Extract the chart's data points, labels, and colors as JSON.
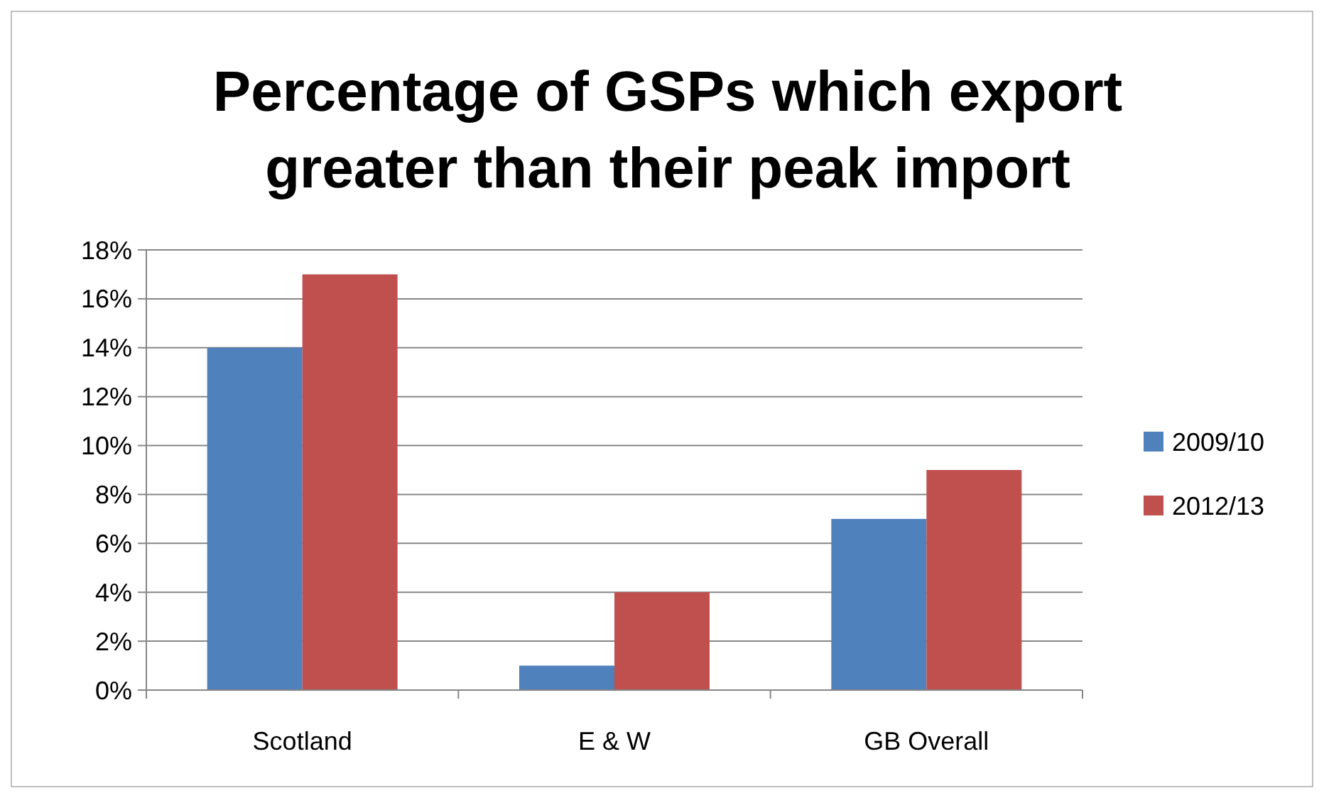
{
  "chart_data": {
    "type": "bar",
    "title": "Percentage of GSPs which export greater than their peak import",
    "categories": [
      "Scotland",
      "E & W",
      "GB Overall"
    ],
    "series": [
      {
        "name": "2009/10",
        "color": "#4f81bd",
        "values": [
          14,
          1,
          7
        ]
      },
      {
        "name": "2012/13",
        "color": "#c0504d",
        "values": [
          17,
          4,
          9
        ]
      }
    ],
    "ylim": [
      0,
      18
    ],
    "yticks": [
      {
        "value": 0,
        "label": "0%"
      },
      {
        "value": 2,
        "label": "2%"
      },
      {
        "value": 4,
        "label": "4%"
      },
      {
        "value": 6,
        "label": "6%"
      },
      {
        "value": 8,
        "label": "8%"
      },
      {
        "value": 10,
        "label": "10%"
      },
      {
        "value": 12,
        "label": "12%"
      },
      {
        "value": 14,
        "label": "14%"
      },
      {
        "value": 16,
        "label": "16%"
      },
      {
        "value": 18,
        "label": "18%"
      }
    ],
    "grid": "y",
    "legend": "right"
  }
}
